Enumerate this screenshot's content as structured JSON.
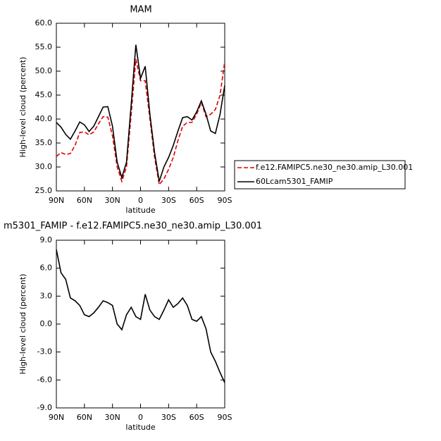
{
  "chart_data": [
    {
      "type": "line",
      "title": "MAM",
      "xlabel": "latitude",
      "ylabel": "High-level cloud (percent)",
      "x": [
        90,
        85,
        80,
        75,
        70,
        65,
        60,
        55,
        50,
        45,
        40,
        35,
        30,
        25,
        20,
        15,
        10,
        5,
        0,
        -5,
        -10,
        -15,
        -20,
        -25,
        -30,
        -35,
        -40,
        -45,
        -50,
        -55,
        -60,
        -65,
        -70,
        -75,
        -80,
        -85,
        -90
      ],
      "series": [
        {
          "name": "f.e12.FAMIPC5.ne30_ne30.amip_L30.001",
          "color": "#e00000",
          "line_style": "dashed",
          "values": [
            32.2,
            33,
            32.6,
            32.8,
            34.5,
            37.2,
            37.3,
            36.7,
            37.3,
            39,
            40.5,
            40.4,
            36.5,
            30,
            27,
            30,
            41,
            52.5,
            48,
            48,
            40,
            32,
            26.3,
            27.5,
            29.5,
            32,
            35.5,
            38.5,
            39.3,
            39.3,
            41,
            43.5,
            40.5,
            41,
            42,
            45,
            52
          ]
        },
        {
          "name": "60Lcam5301_FAMIP",
          "color": "#000000",
          "line_style": "solid",
          "values": [
            39.3,
            38.3,
            36.8,
            35.8,
            37.5,
            39.4,
            38.8,
            37.4,
            38.5,
            40.5,
            42.5,
            42.6,
            38.5,
            31,
            27.8,
            31,
            43,
            55.5,
            48.5,
            51,
            41,
            33,
            27,
            30,
            32,
            34.5,
            37.5,
            40.3,
            40.5,
            39.8,
            41.5,
            43.8,
            41,
            37.5,
            37,
            41,
            47
          ]
        }
      ],
      "xlim": [
        90,
        -90
      ],
      "xticks": [
        {
          "value": 90,
          "label": "90N"
        },
        {
          "value": 60,
          "label": "60N"
        },
        {
          "value": 30,
          "label": "30N"
        },
        0,
        {
          "value": -30,
          "label": "30S"
        },
        {
          "value": -60,
          "label": "60S"
        },
        {
          "value": -90,
          "label": "90S"
        }
      ],
      "ylim": [
        25,
        60
      ],
      "yticks": [
        {
          "value": 25,
          "label": "25.0"
        },
        {
          "value": 30,
          "label": "30.0"
        },
        {
          "value": 35,
          "label": "35.0"
        },
        {
          "value": 40,
          "label": "40.0"
        },
        {
          "value": 45,
          "label": "45.0"
        },
        {
          "value": 50,
          "label": "50.0"
        },
        {
          "value": 55,
          "label": "55.0"
        },
        {
          "value": 60,
          "label": "60.0"
        }
      ],
      "legend": "outside-right"
    },
    {
      "type": "line",
      "title": "m5301_FAMIP - f.e12.FAMIPC5.ne30_ne30.amip_L30.001",
      "xlabel": "latitude",
      "ylabel": "High-level cloud (percent)",
      "x": [
        90,
        85,
        80,
        75,
        70,
        65,
        60,
        55,
        50,
        45,
        40,
        35,
        30,
        25,
        20,
        15,
        10,
        5,
        0,
        -5,
        -10,
        -15,
        -20,
        -25,
        -30,
        -35,
        -40,
        -45,
        -50,
        -55,
        -60,
        -65,
        -70,
        -75,
        -80,
        -85,
        -90
      ],
      "color": "#000000",
      "values": [
        8,
        5.5,
        4.8,
        2.8,
        2.5,
        2,
        1,
        0.8,
        1.2,
        1.8,
        2.5,
        2.3,
        2,
        0,
        -0.6,
        1,
        1.8,
        0.8,
        0.5,
        3.2,
        1.5,
        0.8,
        0.5,
        1.5,
        2.6,
        1.8,
        2.2,
        2.8,
        2,
        0.5,
        0.3,
        0.8,
        -0.5,
        -3,
        -4,
        -5.2,
        -6.3
      ],
      "xlim": [
        90,
        -90
      ],
      "xticks": [
        {
          "value": 90,
          "label": "90N"
        },
        {
          "value": 60,
          "label": "60N"
        },
        {
          "value": 30,
          "label": "30N"
        },
        0,
        {
          "value": -30,
          "label": "30S"
        },
        {
          "value": -60,
          "label": "60S"
        },
        {
          "value": -90,
          "label": "90S"
        }
      ],
      "ylim": [
        -9,
        9
      ],
      "yticks": [
        {
          "value": -9,
          "label": "-9.0"
        },
        {
          "value": -6,
          "label": "-6.0"
        },
        {
          "value": -3,
          "label": "-3.0"
        },
        {
          "value": 0,
          "label": "0.0"
        },
        {
          "value": 3,
          "label": "3.0"
        },
        {
          "value": 6,
          "label": "6.0"
        },
        {
          "value": 9,
          "label": "9.0"
        }
      ]
    }
  ]
}
